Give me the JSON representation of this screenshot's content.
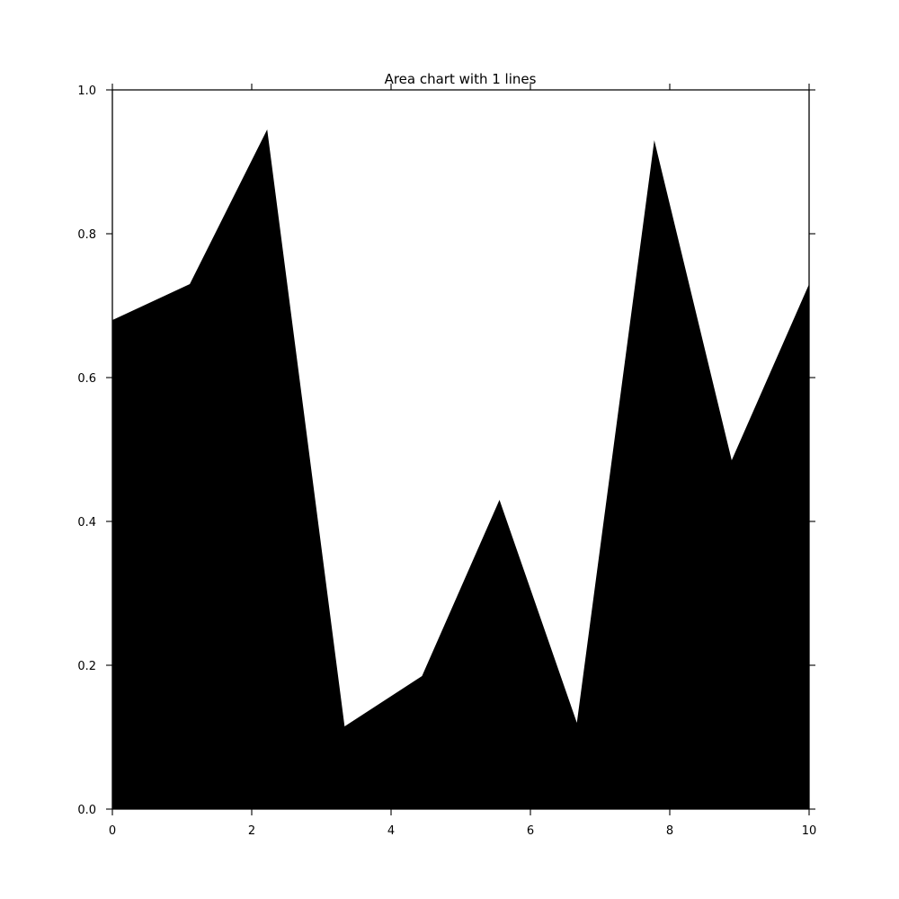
{
  "chart_data": {
    "type": "area",
    "title": "Area chart with 1 lines",
    "xlabel": "",
    "ylabel": "",
    "xlim": [
      0,
      10
    ],
    "ylim": [
      0,
      1.0
    ],
    "x_ticks": [
      0,
      2,
      4,
      6,
      8,
      10
    ],
    "x_tick_labels": [
      "0",
      "2",
      "4",
      "6",
      "8",
      "10"
    ],
    "y_ticks": [
      0.0,
      0.2,
      0.4,
      0.6,
      0.8,
      1.0
    ],
    "y_tick_labels": [
      "0.0",
      "0.2",
      "0.4",
      "0.6",
      "0.8",
      "1.0"
    ],
    "grid": false,
    "legend": "none",
    "series": [
      {
        "color": "#000000",
        "x": [
          0,
          1.111,
          2.222,
          3.333,
          4.444,
          5.556,
          6.667,
          7.778,
          8.889,
          10
        ],
        "y": [
          0.68,
          0.73,
          0.945,
          0.115,
          0.185,
          0.43,
          0.12,
          0.93,
          0.485,
          0.73
        ]
      }
    ]
  }
}
